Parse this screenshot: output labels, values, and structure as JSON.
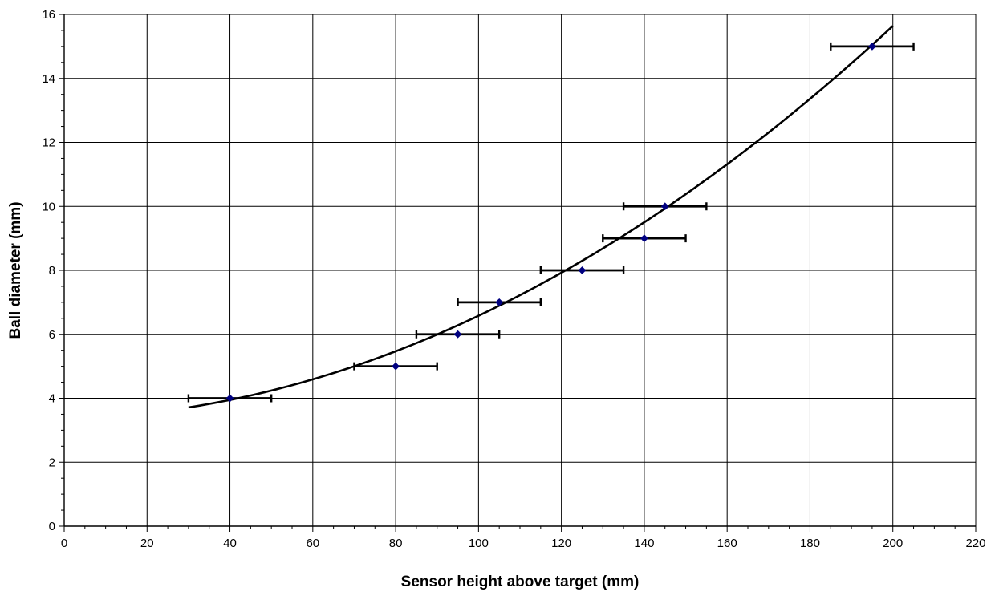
{
  "chart_data": {
    "type": "scatter",
    "title": "",
    "xlabel": "Sensor height above target (mm)",
    "ylabel": "Ball diameter (mm)",
    "xlim": [
      0,
      220
    ],
    "ylim": [
      0,
      16
    ],
    "x_ticks": [
      "0",
      "20",
      "40",
      "60",
      "80",
      "100",
      "120",
      "140",
      "160",
      "180",
      "200",
      "220"
    ],
    "y_ticks": [
      "0",
      "2",
      "4",
      "6",
      "8",
      "10",
      "12",
      "14",
      "16"
    ],
    "x_tick_values": [
      0,
      20,
      40,
      60,
      80,
      100,
      120,
      140,
      160,
      180,
      200,
      220
    ],
    "y_tick_values": [
      0,
      2,
      4,
      6,
      8,
      10,
      12,
      14,
      16
    ],
    "x_minor_step": 5,
    "y_minor_step": 0.5,
    "grid": true,
    "legend": "none",
    "series": [
      {
        "points": [
          {
            "x": 40,
            "y": 4
          },
          {
            "x": 80,
            "y": 5
          },
          {
            "x": 95,
            "y": 6
          },
          {
            "x": 105,
            "y": 7
          },
          {
            "x": 125,
            "y": 8
          },
          {
            "x": 140,
            "y": 9
          },
          {
            "x": 145,
            "y": 10
          },
          {
            "x": 195,
            "y": 15
          }
        ],
        "x_error": 10,
        "marker": "diamond",
        "marker_color": "#000080"
      }
    ],
    "trendline": {
      "type": "polynomial",
      "order": 2,
      "coefficients": [
        3.36,
        0.003,
        0.000292
      ],
      "x_range": [
        30,
        200
      ],
      "color": "#000000"
    }
  }
}
